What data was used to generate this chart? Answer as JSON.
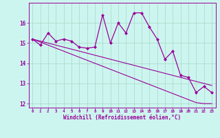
{
  "xlabel": "Windchill (Refroidissement éolien,°C)",
  "bg_color": "#cdf5ef",
  "line_color": "#990099",
  "grid_color": "#aaddcc",
  "x_data": [
    0,
    1,
    2,
    3,
    4,
    5,
    6,
    7,
    8,
    9,
    10,
    11,
    12,
    13,
    14,
    15,
    16,
    17,
    18,
    19,
    20,
    21,
    22,
    23
  ],
  "y_main": [
    15.2,
    14.9,
    15.5,
    15.1,
    15.2,
    15.1,
    14.8,
    14.75,
    14.8,
    16.4,
    15.0,
    16.0,
    15.5,
    16.5,
    16.5,
    15.8,
    15.2,
    14.2,
    14.6,
    13.4,
    13.3,
    12.55,
    12.85,
    12.55
  ],
  "y_trend1": [
    15.2,
    15.05,
    14.9,
    14.75,
    14.6,
    14.45,
    14.3,
    14.15,
    14.0,
    13.85,
    13.7,
    13.55,
    13.4,
    13.25,
    13.1,
    12.95,
    12.8,
    12.65,
    12.5,
    12.35,
    12.2,
    12.05,
    12.0,
    12.0
  ],
  "y_trend2": [
    15.2,
    15.1,
    15.0,
    14.9,
    14.8,
    14.7,
    14.6,
    14.5,
    14.4,
    14.3,
    14.2,
    14.1,
    14.0,
    13.9,
    13.8,
    13.7,
    13.6,
    13.5,
    13.4,
    13.3,
    13.2,
    13.1,
    13.0,
    12.9
  ],
  "ylim": [
    11.8,
    17.0
  ],
  "xlim": [
    -0.5,
    23.5
  ],
  "yticks": [
    12,
    13,
    14,
    15,
    16
  ],
  "xticks": [
    0,
    1,
    2,
    3,
    4,
    5,
    6,
    7,
    8,
    9,
    10,
    11,
    12,
    13,
    14,
    15,
    16,
    17,
    18,
    19,
    20,
    21,
    22,
    23
  ]
}
